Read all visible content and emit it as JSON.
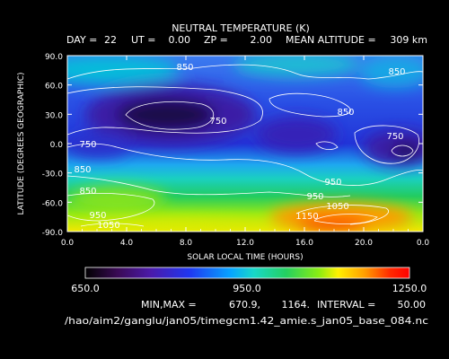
{
  "chart_data": {
    "type": "contour",
    "title": "NEUTRAL TEMPERATURE (K)",
    "subtitle": {
      "day_label": "DAY =",
      "day": "22",
      "ut_label": "UT =",
      "ut": "0.00",
      "zp_label": "ZP =",
      "zp": "2.00",
      "mean_alt_label": "MEAN ALTITUDE =",
      "mean_alt": "309 km"
    },
    "xlabel": "SOLAR LOCAL TIME (HOURS)",
    "ylabel": "LATITUDE (DEGREES GEOGRAPHIC)",
    "xlim": [
      0,
      24
    ],
    "ylim": [
      -90,
      90
    ],
    "x_ticks": [
      "0.0",
      "4.0",
      "8.0",
      "12.0",
      "16.0",
      "20.0",
      "0.0"
    ],
    "y_ticks": [
      "90.0",
      "60.0",
      "30.0",
      "0.0",
      "-30.0",
      "-60.0",
      "-90.0"
    ],
    "contour_labels": [
      "850",
      "850",
      "750",
      "850",
      "750",
      "750",
      "850",
      "950",
      "850",
      "950",
      "1050",
      "950",
      "1050",
      "1150"
    ],
    "colorbar": {
      "min_label": "650.0",
      "mid_label": "950.0",
      "max_label": "1250.0",
      "range": [
        650,
        1250
      ]
    },
    "stats": {
      "minmax_label": "MIN,MAX =",
      "min": "670.9,",
      "max": "1164.",
      "interval_label": "INTERVAL =",
      "interval": "50.00"
    },
    "source_file": "/hao/aim2/ganglu/jan05/timegcm1.42_amie.s_jan05_base_084.nc"
  }
}
